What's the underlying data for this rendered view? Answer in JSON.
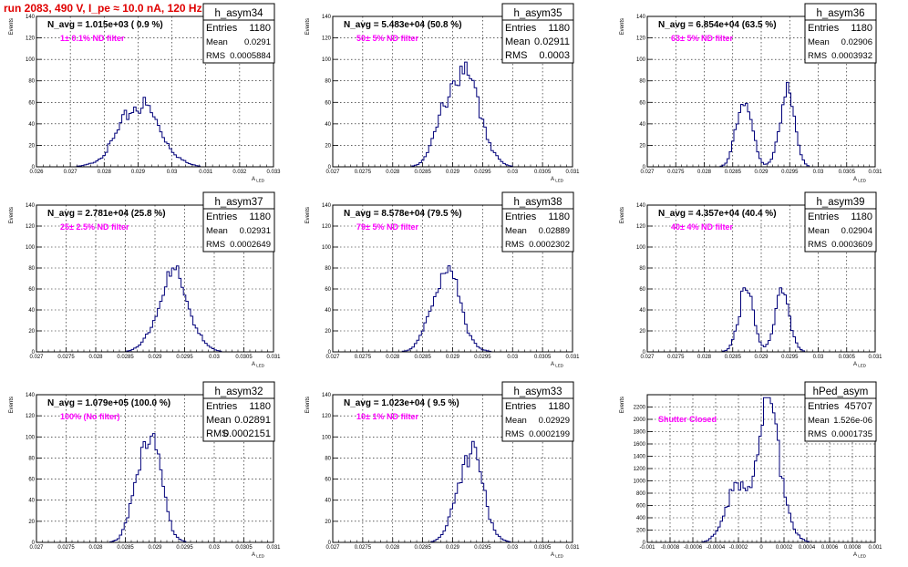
{
  "page_title": "run 2083,   490 V, I_pe ≈ 10.0 nA, 120 Hz",
  "colors": {
    "title": "#e00000",
    "histogram": "#00007a",
    "filter_label": "#ff00ff",
    "grid": "#000000"
  },
  "chart_data": [
    {
      "type": "histogram",
      "name": "h_asym34",
      "n_avg_label": "N_avg = 1.015e+03 ( 0.9 %)",
      "filter_label": "1± 0.1% ND filter",
      "stats": {
        "Entries": "1180",
        "Mean": "0.0291",
        "RMS": "0.0005884"
      },
      "xlim": [
        0.026,
        0.033
      ],
      "ylim": [
        0,
        140
      ],
      "xticks": [
        "0.026",
        "0.027",
        "0.028",
        "0.029",
        "0.03",
        "0.031",
        "0.032",
        "0.033"
      ],
      "yticks": [
        "0",
        "20",
        "40",
        "60",
        "80",
        "100",
        "120",
        "140"
      ],
      "xlabel": "A",
      "xlabel_sub": "LED",
      "ylabel": "Events",
      "shape": {
        "peaks": [
          [
            0.02905,
            0.0006,
            58
          ]
        ]
      }
    },
    {
      "type": "histogram",
      "name": "h_asym35",
      "n_avg_label": "N_avg = 5.483e+04 (50.8 %)",
      "filter_label": "50± 5% ND filter",
      "stats": {
        "Entries": "1180",
        "Mean": "0.02911",
        "RMS": "0.0003"
      },
      "xlim": [
        0.027,
        0.031
      ],
      "ylim": [
        0,
        140
      ],
      "xticks": [
        "0.027",
        "0.0275",
        "0.028",
        "0.0285",
        "0.029",
        "0.0295",
        "0.03",
        "0.0305",
        "0.031"
      ],
      "yticks": [
        "0",
        "20",
        "40",
        "60",
        "80",
        "100",
        "120",
        "140"
      ],
      "xlabel": "A",
      "xlabel_sub": "LED",
      "ylabel": "Events",
      "shape": {
        "peaks": [
          [
            0.02897,
            0.00022,
            60
          ],
          [
            0.02932,
            0.00022,
            58
          ]
        ]
      }
    },
    {
      "type": "histogram",
      "name": "h_asym36",
      "n_avg_label": "N_avg = 6.854e+04 (63.5 %)",
      "filter_label": "63± 5% ND filter",
      "stats": {
        "Entries": "1180",
        "Mean": "0.02906",
        "RMS": "0.0003932"
      },
      "xlim": [
        0.027,
        0.031
      ],
      "ylim": [
        0,
        140
      ],
      "xticks": [
        "0.027",
        "0.0275",
        "0.028",
        "0.0285",
        "0.029",
        "0.0295",
        "0.03",
        "0.0305",
        "0.031"
      ],
      "yticks": [
        "0",
        "20",
        "40",
        "60",
        "80",
        "100",
        "120",
        "140"
      ],
      "xlabel": "A",
      "xlabel_sub": "LED",
      "ylabel": "Events",
      "shape": {
        "peaks": [
          [
            0.0287,
            0.00013,
            68
          ],
          [
            0.02945,
            0.00013,
            68
          ]
        ]
      }
    },
    {
      "type": "histogram",
      "name": "h_asym37",
      "n_avg_label": "N_avg = 2.781e+04 (25.8 %)",
      "filter_label": "25± 2.5% ND filter",
      "stats": {
        "Entries": "1180",
        "Mean": "0.02931",
        "RMS": "0.0002649"
      },
      "xlim": [
        0.027,
        0.031
      ],
      "ylim": [
        0,
        140
      ],
      "xticks": [
        "0.027",
        "0.0275",
        "0.028",
        "0.0285",
        "0.029",
        "0.0295",
        "0.03",
        "0.0305",
        "0.031"
      ],
      "yticks": [
        "0",
        "20",
        "40",
        "60",
        "80",
        "100",
        "120",
        "140"
      ],
      "xlabel": "A",
      "xlabel_sub": "LED",
      "ylabel": "Events",
      "shape": {
        "peaks": [
          [
            0.02931,
            0.00026,
            72
          ]
        ]
      }
    },
    {
      "type": "histogram",
      "name": "h_asym38",
      "n_avg_label": "N_avg = 8.578e+04 (79.5 %)",
      "filter_label": "79± 5% ND filter",
      "stats": {
        "Entries": "1180",
        "Mean": "0.02889",
        "RMS": "0.0002302"
      },
      "xlim": [
        0.027,
        0.031
      ],
      "ylim": [
        0,
        140
      ],
      "xticks": [
        "0.027",
        "0.0275",
        "0.028",
        "0.0285",
        "0.029",
        "0.0295",
        "0.03",
        "0.0305",
        "0.031"
      ],
      "yticks": [
        "0",
        "20",
        "40",
        "60",
        "80",
        "100",
        "120",
        "140"
      ],
      "xlabel": "A",
      "xlabel_sub": "LED",
      "ylabel": "Events",
      "shape": {
        "peaks": [
          [
            0.02889,
            0.00023,
            80
          ]
        ]
      }
    },
    {
      "type": "histogram",
      "name": "h_asym39",
      "n_avg_label": "N_avg = 4.357e+04 (40.4 %)",
      "filter_label": "40± 4% ND filter",
      "stats": {
        "Entries": "1180",
        "Mean": "0.02904",
        "RMS": "0.0003609"
      },
      "xlim": [
        0.027,
        0.031
      ],
      "ylim": [
        0,
        140
      ],
      "xticks": [
        "0.027",
        "0.0275",
        "0.028",
        "0.0285",
        "0.029",
        "0.0295",
        "0.03",
        "0.0305",
        "0.031"
      ],
      "yticks": [
        "0",
        "20",
        "40",
        "60",
        "80",
        "100",
        "120",
        "140"
      ],
      "xlabel": "A",
      "xlabel_sub": "LED",
      "ylabel": "Events",
      "shape": {
        "peaks": [
          [
            0.02873,
            0.00013,
            58
          ],
          [
            0.02937,
            0.00013,
            56
          ]
        ]
      }
    },
    {
      "type": "histogram",
      "name": "h_asym32",
      "n_avg_label": "N_avg = 1.079e+05 (100.0 %)",
      "filter_label": "100% (No filter)",
      "stats": {
        "Entries": "1180",
        "Mean": "0.02891",
        "RMS": "0.0002151"
      },
      "xlim": [
        0.027,
        0.031
      ],
      "ylim": [
        0,
        140
      ],
      "xticks": [
        "0.027",
        "0.0275",
        "0.028",
        "0.0285",
        "0.029",
        "0.0295",
        "0.03",
        "0.0305",
        "0.031"
      ],
      "yticks": [
        "0",
        "20",
        "40",
        "60",
        "80",
        "100",
        "120",
        "140"
      ],
      "xlabel": "A",
      "xlabel_sub": "LED",
      "ylabel": "Events",
      "shape": {
        "peaks": [
          [
            0.02889,
            0.0002,
            105
          ]
        ]
      }
    },
    {
      "type": "histogram",
      "name": "h_asym33",
      "n_avg_label": "N_avg = 1.023e+04 ( 9.5 %)",
      "filter_label": "10± 1% ND filter",
      "stats": {
        "Entries": "1180",
        "Mean": "0.02929",
        "RMS": "0.0002199"
      },
      "xlim": [
        0.027,
        0.031
      ],
      "ylim": [
        0,
        140
      ],
      "xticks": [
        "0.027",
        "0.0275",
        "0.028",
        "0.0285",
        "0.029",
        "0.0295",
        "0.03",
        "0.0305",
        "0.031"
      ],
      "yticks": [
        "0",
        "20",
        "40",
        "60",
        "80",
        "100",
        "120",
        "140"
      ],
      "xlabel": "A",
      "xlabel_sub": "LED",
      "ylabel": "Events",
      "shape": {
        "peaks": [
          [
            0.02929,
            0.00021,
            88
          ]
        ]
      }
    },
    {
      "type": "histogram",
      "name": "hPed_asym",
      "n_avg_label": "",
      "filter_label": "Shutter Closed",
      "stats": {
        "Entries": "45707",
        "Mean": "1.526e-06",
        "RMS": "0.0001735"
      },
      "xlim": [
        -0.001,
        0.001
      ],
      "ylim": [
        0,
        2400
      ],
      "xticks": [
        "-0.001",
        "-0.0008",
        "-0.0006",
        "-0.0004",
        "-0.0002",
        "0",
        "0.0002",
        "0.0004",
        "0.0006",
        "0.0008",
        "0.001"
      ],
      "yticks": [
        "0",
        "200",
        "400",
        "600",
        "800",
        "1000",
        "1200",
        "1400",
        "1600",
        "1800",
        "2000",
        "2200"
      ],
      "xlabel": "A",
      "xlabel_sub": "LED",
      "ylabel": "Events",
      "shape": {
        "peaks": [
          [
            6e-05,
            0.00011,
            2150
          ],
          [
            -0.00024,
            9e-05,
            800
          ]
        ]
      }
    }
  ]
}
